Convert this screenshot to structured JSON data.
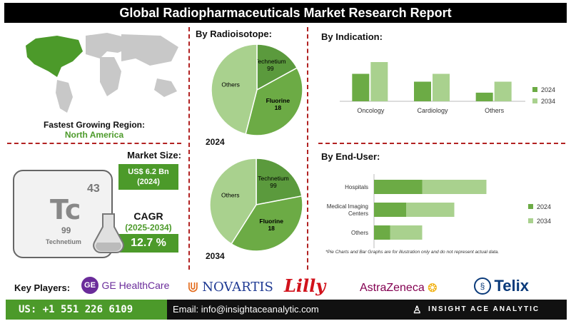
{
  "title": "Global Radiopharmaceuticals Market Research Report",
  "region": {
    "label": "Fastest Growing Region:",
    "value": "North America"
  },
  "market": {
    "size_label": "Market Size:",
    "size_value": "US$ 6.2 Bn",
    "size_year": "(2024)",
    "cagr_label": "CAGR",
    "cagr_period": "(2025-2034)",
    "cagr_value": "12.7 %"
  },
  "element_tile": {
    "number": "43",
    "symbol": "Tc",
    "mass": "99",
    "name": "Technetium"
  },
  "colors": {
    "dark_green": "#5b9a3d",
    "light_green": "#a9d18e",
    "mid_green": "#6cab45",
    "accent_red": "#b22222"
  },
  "note": "*Pie Charts and Bar Graphs are for illustration only and do not represent actual data.",
  "key_players_label": "Key Players:",
  "players": [
    "GE HealthCare",
    "NOVARTIS",
    "Lilly",
    "AstraZeneca",
    "Telix"
  ],
  "footer": {
    "phone": "US: +1 551 226 6109",
    "email": "Email: info@insightaceanalytic.com",
    "brand": "INSIGHT ACE ANALYTIC"
  },
  "chart_data": [
    {
      "type": "pie",
      "title": "By Radioisotope:",
      "caption": "2024",
      "labels": [
        "Technetium 99",
        "Fluorine 18",
        "Others"
      ],
      "values": [
        17,
        37,
        46
      ]
    },
    {
      "type": "pie",
      "caption": "2034",
      "labels": [
        "Technetium 99",
        "Fluorine 18",
        "Others"
      ],
      "values": [
        22,
        37,
        41
      ]
    },
    {
      "type": "bar",
      "title": "By Indication:",
      "categories": [
        "Oncology",
        "Cardiology",
        "Others"
      ],
      "series": [
        {
          "name": "2024",
          "values": [
            7,
            5,
            2.2
          ]
        },
        {
          "name": "2034",
          "values": [
            10,
            7,
            5
          ]
        }
      ],
      "ylim": [
        0,
        12
      ],
      "legend": "right"
    },
    {
      "type": "bar",
      "orientation": "horizontal",
      "stacked": true,
      "title": "By End-User:",
      "categories": [
        "Hospitals",
        "Medical Imaging Centers",
        "Others"
      ],
      "series": [
        {
          "name": "2024",
          "values": [
            6,
            4,
            2
          ]
        },
        {
          "name": "2034",
          "values": [
            8,
            6,
            4
          ]
        }
      ],
      "xlim": [
        0,
        16
      ],
      "legend": "right"
    }
  ]
}
